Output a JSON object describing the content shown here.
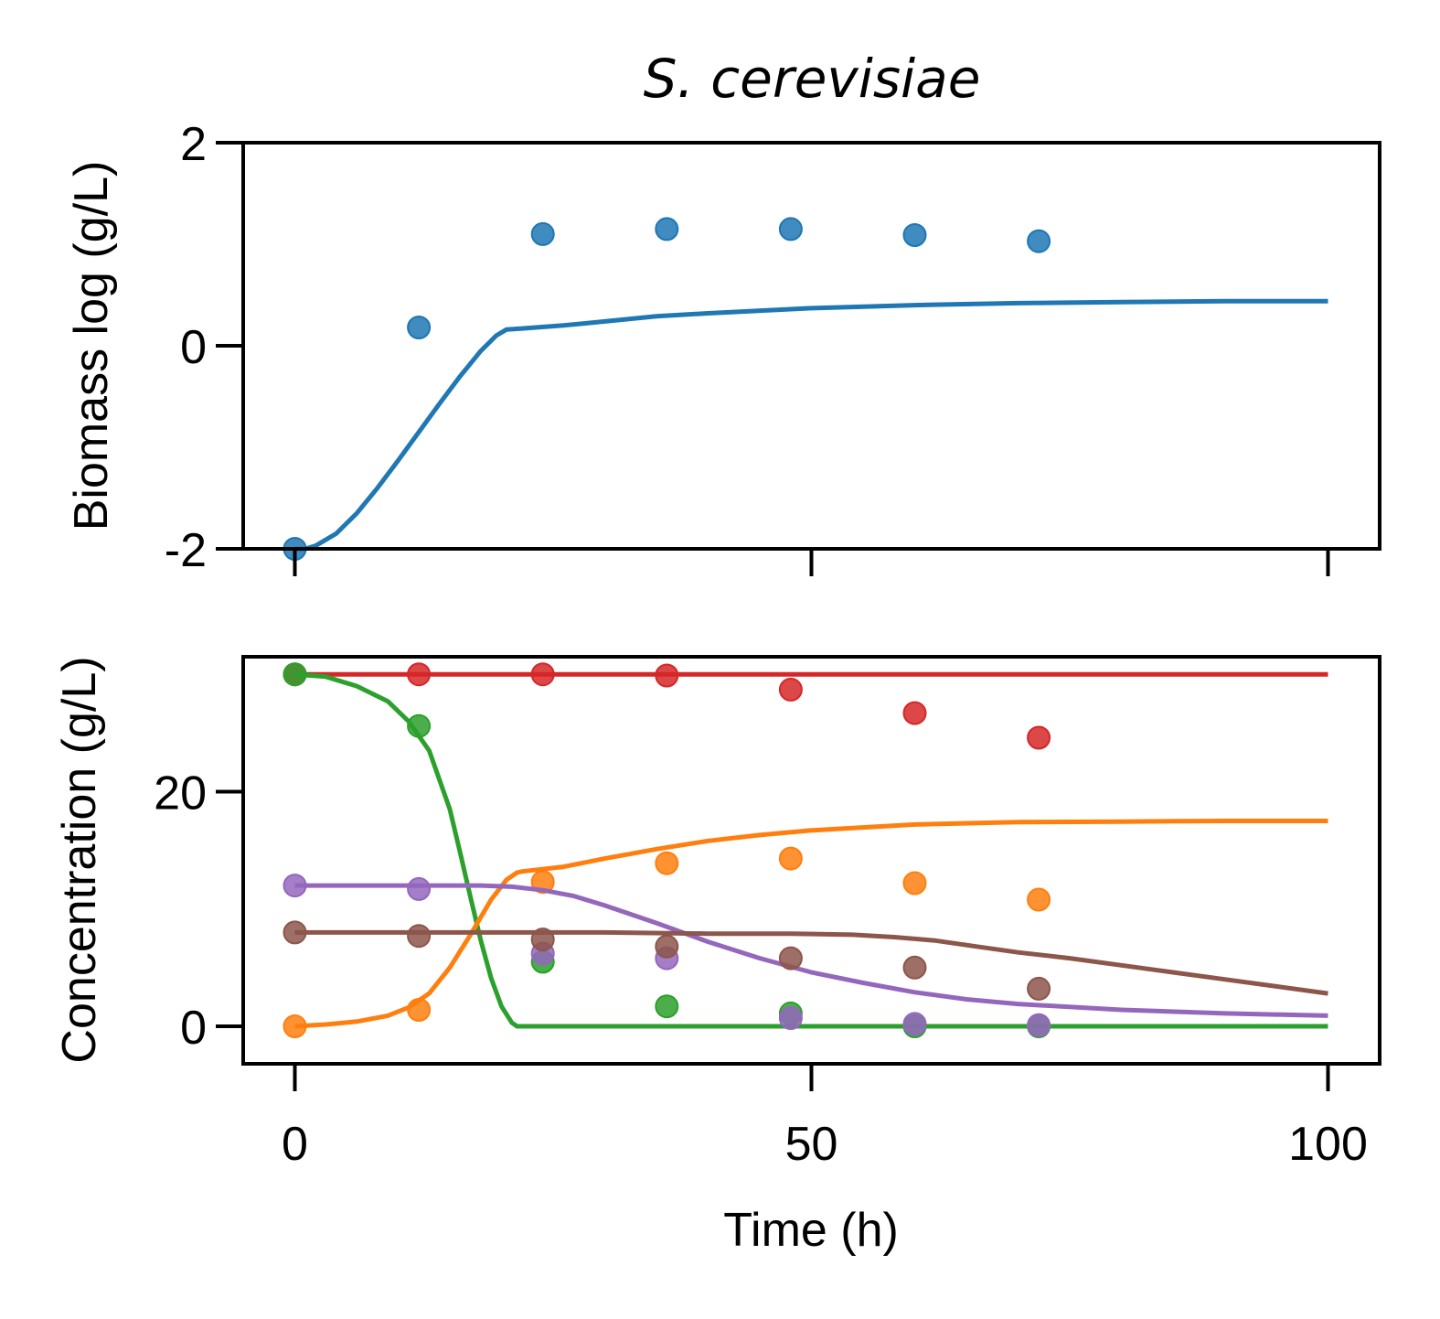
{
  "chart_data": [
    {
      "type": "line",
      "title": "S. cerevisiae",
      "xlabel": "",
      "ylabel": "Biomass log (g/L)",
      "xlim": [
        -5,
        105
      ],
      "ylim": [
        -2,
        2
      ],
      "xticks": [
        0,
        50,
        100
      ],
      "yticks": [
        -2,
        0,
        2
      ],
      "ytick_labels": [
        "-2",
        "0",
        "2"
      ],
      "xtick_labels_shown": false,
      "grid": false,
      "series": [
        {
          "color": "#1f77b4",
          "line": {
            "x": [
              0,
              1,
              2,
              4,
              6,
              8,
              10,
              12,
              14,
              16,
              18,
              19.5,
              20.5,
              22,
              26,
              30,
              35,
              40,
              50,
              60,
              70,
              80,
              90,
              100
            ],
            "y": [
              -2,
              -2.0,
              -1.97,
              -1.85,
              -1.65,
              -1.4,
              -1.13,
              -0.85,
              -0.57,
              -0.3,
              -0.05,
              0.1,
              0.16,
              0.17,
              0.2,
              0.24,
              0.29,
              0.32,
              0.37,
              0.4,
              0.42,
              0.43,
              0.44,
              0.44
            ]
          },
          "points": {
            "x": [
              0,
              12,
              24,
              36,
              48,
              60,
              72
            ],
            "y": [
              -2.0,
              0.18,
              1.1,
              1.15,
              1.15,
              1.09,
              1.03
            ]
          }
        }
      ]
    },
    {
      "type": "line",
      "title": "",
      "xlabel": "Time (h)",
      "ylabel": "Concentration (g/L)",
      "xlim": [
        -5,
        105
      ],
      "ylim": [
        -3.2,
        31.5
      ],
      "xticks": [
        0,
        50,
        100
      ],
      "xtick_labels": [
        "0",
        "50",
        "100"
      ],
      "yticks": [
        0,
        20
      ],
      "ytick_labels": [
        "0",
        "20"
      ],
      "grid": false,
      "series": [
        {
          "color": "#d62728",
          "line": {
            "x": [
              0,
              100
            ],
            "y": [
              30,
              30
            ]
          },
          "points": {
            "x": [
              0,
              12,
              24,
              36,
              48,
              60,
              72
            ],
            "y": [
              30,
              30,
              30,
              29.9,
              28.7,
              26.7,
              24.6
            ]
          }
        },
        {
          "color": "#2ca02c",
          "line": {
            "x": [
              0,
              3,
              6,
              9,
              11,
              13,
              15,
              16,
              17,
              18,
              19,
              20,
              21,
              21.5,
              22,
              100
            ],
            "y": [
              30,
              29.8,
              29,
              27.7,
              26,
              23.5,
              18.5,
              14.8,
              11,
              7.3,
              4.1,
              1.7,
              0.3,
              0,
              0,
              0
            ]
          },
          "points": {
            "x": [
              0,
              12,
              24,
              36,
              48,
              60,
              72
            ],
            "y": [
              30,
              25.6,
              5.5,
              1.7,
              1.1,
              0,
              0
            ]
          }
        },
        {
          "color": "#ff7f0e",
          "line": {
            "x": [
              0,
              3,
              6,
              9,
              11,
              13,
              15,
              17,
              19,
              20.5,
              21.5,
              22,
              26,
              30,
              35,
              40,
              45,
              50,
              60,
              70,
              80,
              90,
              100
            ],
            "y": [
              0,
              0.15,
              0.4,
              0.9,
              1.6,
              2.8,
              5,
              7.8,
              10.8,
              12.5,
              13.1,
              13.2,
              13.6,
              14.3,
              15.1,
              15.8,
              16.3,
              16.7,
              17.2,
              17.4,
              17.45,
              17.5,
              17.5
            ]
          },
          "points": {
            "x": [
              0,
              12,
              24,
              36,
              48,
              60,
              72
            ],
            "y": [
              0,
              1.4,
              12.3,
              13.9,
              14.3,
              12.2,
              10.8
            ]
          }
        },
        {
          "color": "#9467bd",
          "line": {
            "x": [
              0,
              10,
              18,
              21,
              24,
              27,
              30,
              35,
              40,
              45,
              50,
              55,
              60,
              65,
              70,
              80,
              90,
              100
            ],
            "y": [
              12,
              12,
              12,
              11.9,
              11.6,
              11.1,
              10.3,
              8.8,
              7.2,
              5.8,
              4.6,
              3.7,
              2.9,
              2.3,
              1.9,
              1.4,
              1.1,
              0.9
            ]
          },
          "points": {
            "x": [
              0,
              12,
              24,
              36,
              48,
              60,
              72
            ],
            "y": [
              12,
              11.7,
              6.2,
              5.8,
              0.7,
              0.2,
              0.1
            ]
          }
        },
        {
          "color": "#8c564b",
          "line": {
            "x": [
              0,
              10,
              20,
              30,
              40,
              48,
              54,
              58,
              62,
              66,
              70,
              75,
              80,
              85,
              90,
              95,
              100
            ],
            "y": [
              8,
              8,
              8,
              8,
              7.9,
              7.9,
              7.8,
              7.6,
              7.3,
              6.8,
              6.3,
              5.8,
              5.2,
              4.6,
              4.0,
              3.4,
              2.8
            ]
          },
          "points": {
            "x": [
              0,
              12,
              24,
              36,
              48,
              60,
              72
            ],
            "y": [
              8,
              7.7,
              7.4,
              6.8,
              5.8,
              5.0,
              3.2
            ]
          }
        }
      ]
    }
  ]
}
